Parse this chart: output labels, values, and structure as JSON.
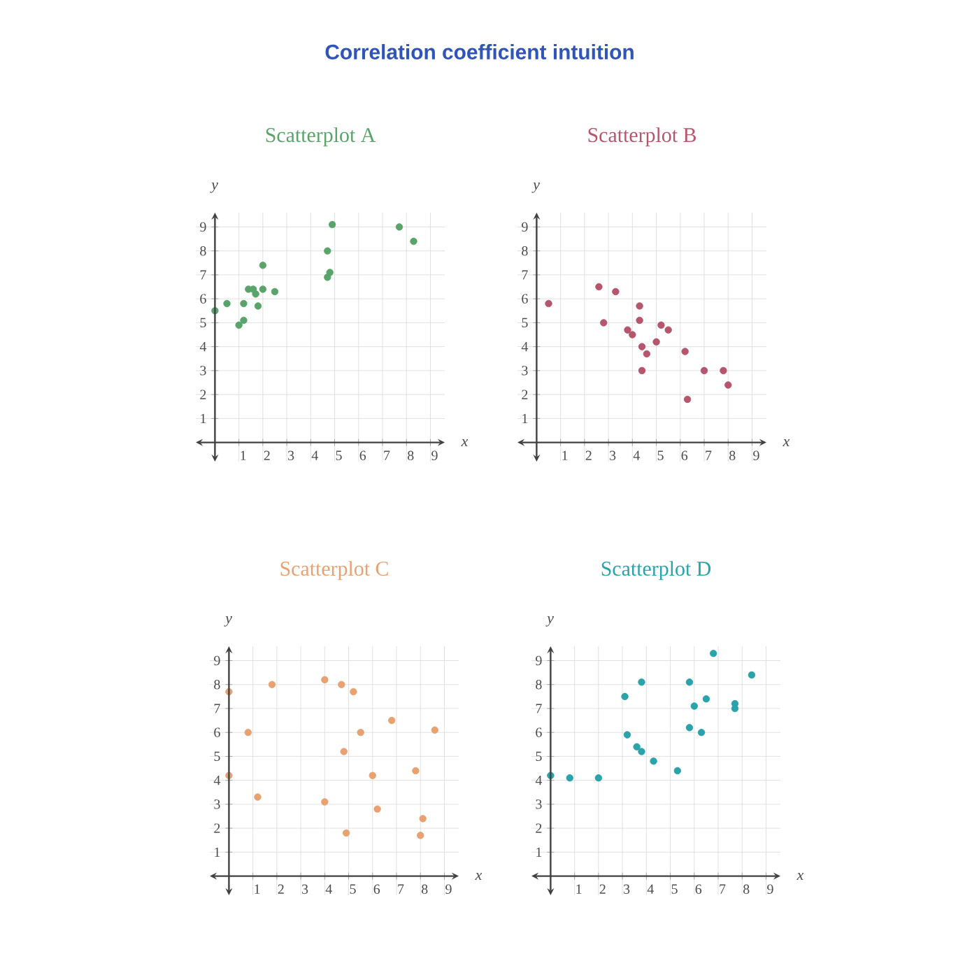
{
  "chart_data": [
    {
      "type": "scatter",
      "title": "Scatterplot A",
      "annotations": [
        "Correlation coefficient intuition"
      ],
      "xlabel": "x",
      "ylabel": "y",
      "color": "#5aa46c",
      "grid": true,
      "xlim": [
        -0.8,
        9.6
      ],
      "ylim": [
        -0.8,
        9.6
      ],
      "xticks": [
        1,
        2,
        3,
        4,
        5,
        6,
        7,
        8,
        9
      ],
      "yticks": [
        1,
        2,
        3,
        4,
        5,
        6,
        7,
        8,
        9
      ],
      "x": [
        0,
        0.5,
        1,
        1.2,
        1.2,
        1.4,
        1.6,
        1.7,
        1.8,
        2,
        2,
        2.5,
        4.7,
        4.7,
        4.8,
        4.9,
        7.7,
        8.3
      ],
      "values": [
        5.5,
        5.8,
        4.9,
        5.1,
        5.8,
        6.4,
        6.4,
        6.2,
        5.7,
        6.4,
        7.4,
        6.3,
        8,
        6.9,
        7.1,
        9.1,
        9,
        8.4
      ]
    },
    {
      "type": "scatter",
      "title": "Scatterplot B",
      "xlabel": "x",
      "ylabel": "y",
      "color": "#b5566c",
      "grid": true,
      "xlim": [
        -0.8,
        9.6
      ],
      "ylim": [
        -0.8,
        9.6
      ],
      "xticks": [
        1,
        2,
        3,
        4,
        5,
        6,
        7,
        8,
        9
      ],
      "yticks": [
        1,
        2,
        3,
        4,
        5,
        6,
        7,
        8,
        9
      ],
      "x": [
        0.5,
        2.6,
        2.8,
        3.3,
        3.8,
        4,
        4.3,
        4.3,
        4.4,
        4.4,
        4.6,
        5,
        5.2,
        5.5,
        6.2,
        6.3,
        7,
        7.8,
        8
      ],
      "values": [
        5.8,
        6.5,
        5,
        6.3,
        4.7,
        4.5,
        5.7,
        5.1,
        4,
        3,
        3.7,
        4.2,
        4.9,
        4.7,
        3.8,
        1.8,
        3,
        3,
        2.4
      ]
    },
    {
      "type": "scatter",
      "title": "Scatterplot C",
      "xlabel": "x",
      "ylabel": "y",
      "color": "#e8a272",
      "grid": true,
      "xlim": [
        -0.8,
        9.6
      ],
      "ylim": [
        -0.8,
        9.6
      ],
      "xticks": [
        1,
        2,
        3,
        4,
        5,
        6,
        7,
        8,
        9
      ],
      "yticks": [
        1,
        2,
        3,
        4,
        5,
        6,
        7,
        8,
        9
      ],
      "x": [
        0,
        0,
        0.8,
        1.2,
        1.8,
        4,
        4,
        4.7,
        4.8,
        4.9,
        5.2,
        5.5,
        6,
        6.2,
        6.8,
        7.8,
        8,
        8.1,
        8.6
      ],
      "values": [
        7.7,
        4.2,
        6,
        3.3,
        8,
        8.2,
        3.1,
        8,
        5.2,
        1.8,
        7.7,
        6,
        4.2,
        2.8,
        6.5,
        4.4,
        1.7,
        2.4,
        6.1
      ]
    },
    {
      "type": "scatter",
      "title": "Scatterplot D",
      "xlabel": "x",
      "ylabel": "y",
      "color": "#2aa3aa",
      "grid": true,
      "xlim": [
        -0.8,
        9.6
      ],
      "ylim": [
        -0.8,
        9.6
      ],
      "xticks": [
        1,
        2,
        3,
        4,
        5,
        6,
        7,
        8,
        9
      ],
      "yticks": [
        1,
        2,
        3,
        4,
        5,
        6,
        7,
        8,
        9
      ],
      "x": [
        0,
        0.8,
        2,
        3.1,
        3.2,
        3.6,
        3.8,
        3.8,
        4.3,
        5.3,
        5.8,
        5.8,
        6,
        6.3,
        6.5,
        6.8,
        7.7,
        7.7,
        8.4
      ],
      "values": [
        4.2,
        4.1,
        4.1,
        7.5,
        5.9,
        5.4,
        5.2,
        8.1,
        4.8,
        4.4,
        8.1,
        6.2,
        7.1,
        6,
        7.4,
        9.3,
        7.2,
        7,
        8.4
      ]
    }
  ]
}
